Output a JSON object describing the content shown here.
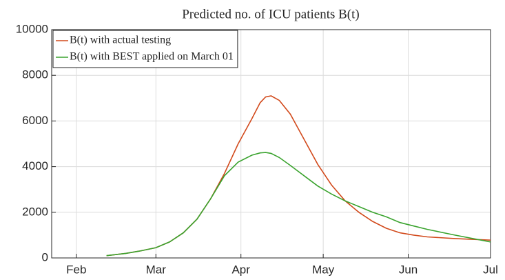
{
  "chart_data": {
    "type": "line",
    "title": "Predicted no. of ICU patients B(t)",
    "x": [
      43,
      50,
      55,
      61,
      66,
      71,
      76,
      81,
      86,
      91,
      96,
      99,
      101,
      103,
      106,
      110,
      115,
      120,
      125,
      130,
      135,
      140,
      145,
      150,
      155,
      160,
      170,
      183
    ],
    "series": [
      {
        "name": "B(t) with actual testing",
        "color": "#d24a1c",
        "values": [
          100,
          200,
          300,
          450,
          700,
          1100,
          1700,
          2600,
          3700,
          5000,
          6100,
          6800,
          7050,
          7100,
          6900,
          6300,
          5200,
          4100,
          3200,
          2500,
          2000,
          1600,
          1300,
          1100,
          1000,
          920,
          850,
          780
        ]
      },
      {
        "name": "B(t) with BEST applied on March 01",
        "color": "#3aa32e",
        "values": [
          100,
          200,
          300,
          450,
          700,
          1100,
          1700,
          2600,
          3600,
          4200,
          4500,
          4600,
          4620,
          4580,
          4400,
          4050,
          3600,
          3150,
          2800,
          2500,
          2250,
          2000,
          1800,
          1550,
          1400,
          1250,
          1000,
          700
        ]
      }
    ],
    "xlim": [
      23,
      183
    ],
    "xticks": [
      {
        "value": 32,
        "label": "Feb"
      },
      {
        "value": 61,
        "label": "Mar"
      },
      {
        "value": 92,
        "label": "Apr"
      },
      {
        "value": 122,
        "label": "May"
      },
      {
        "value": 153,
        "label": "Jun"
      },
      {
        "value": 183,
        "label": "Jul"
      }
    ],
    "ylim": [
      0,
      10000
    ],
    "yticks": [
      0,
      2000,
      4000,
      6000,
      8000,
      10000
    ],
    "grid": true,
    "legend": "upper-left"
  }
}
